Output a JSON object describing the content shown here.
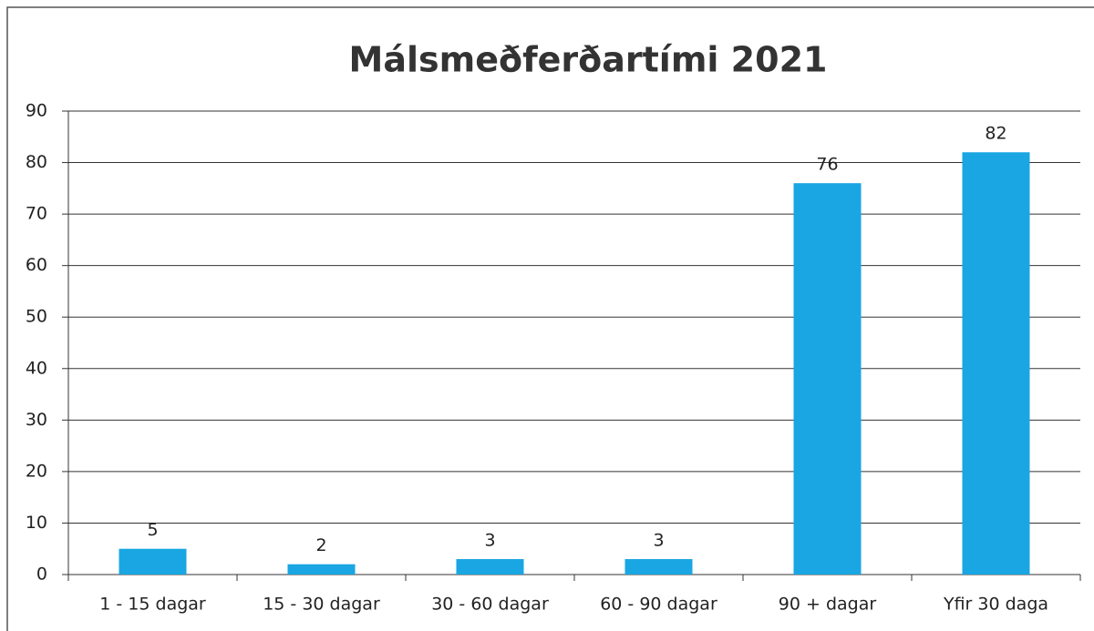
{
  "chart_data": {
    "type": "bar",
    "title": "Málsmeðferðartími 2021",
    "categories": [
      "1 - 15 dagar",
      "15 - 30 dagar",
      "30 - 60 dagar",
      "60 - 90 dagar",
      "90 + dagar",
      "Yfir 30 daga"
    ],
    "values": [
      5,
      2,
      3,
      3,
      76,
      82
    ],
    "color": "#19a6e2",
    "ylim": [
      0,
      90
    ],
    "yticks": [
      0,
      10,
      20,
      30,
      40,
      50,
      60,
      70,
      80,
      90
    ],
    "grid": true
  }
}
